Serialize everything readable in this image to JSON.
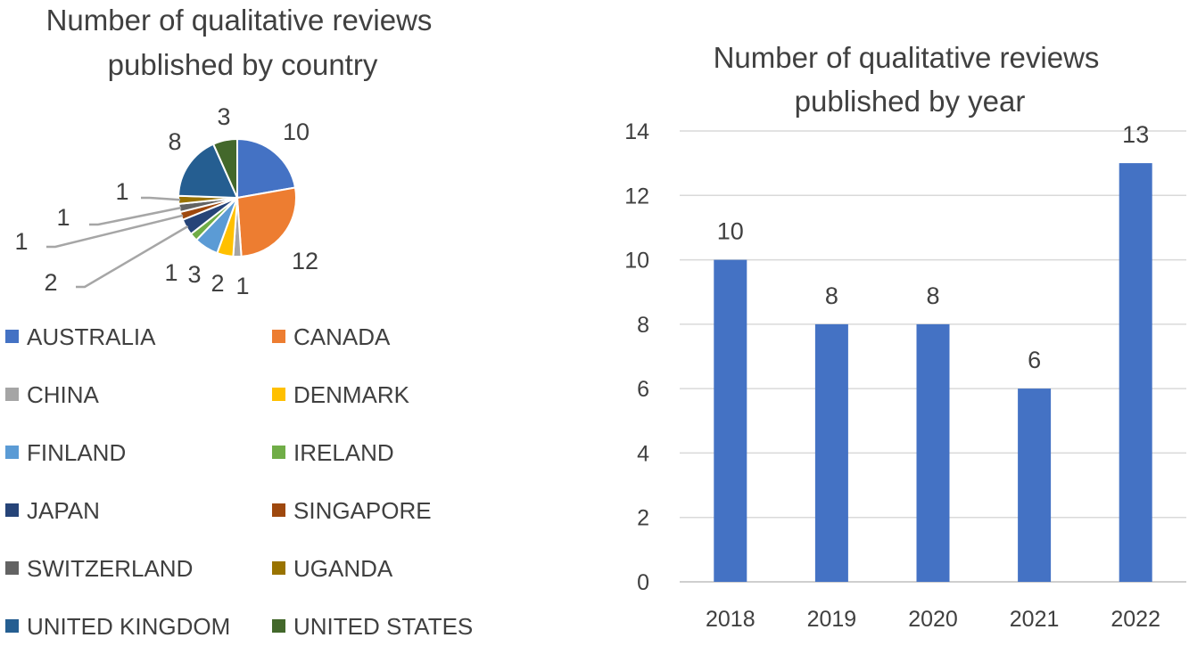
{
  "chart_data": [
    {
      "type": "pie",
      "title_lines": [
        "Number of qualitative reviews",
        "published by country"
      ],
      "legend_position": "bottom",
      "slices": [
        {
          "label": "AUSTRALIA",
          "value": 10,
          "color": "#4472C4"
        },
        {
          "label": "CANADA",
          "value": 12,
          "color": "#ED7D31"
        },
        {
          "label": "CHINA",
          "value": 1,
          "color": "#A5A5A5"
        },
        {
          "label": "DENMARK",
          "value": 2,
          "color": "#FFC000"
        },
        {
          "label": "FINLAND",
          "value": 3,
          "color": "#5B9BD5"
        },
        {
          "label": "IRELAND",
          "value": 1,
          "color": "#70AD47"
        },
        {
          "label": "JAPAN",
          "value": 2,
          "color": "#264478"
        },
        {
          "label": "SINGAPORE",
          "value": 1,
          "color": "#9E480E"
        },
        {
          "label": "SWITZERLAND",
          "value": 1,
          "color": "#636363"
        },
        {
          "label": "UGANDA",
          "value": 1,
          "color": "#997300"
        },
        {
          "label": "UNITED KINGDOM",
          "value": 8,
          "color": "#255E91"
        },
        {
          "label": "UNITED STATES",
          "value": 3,
          "color": "#43682B"
        }
      ]
    },
    {
      "type": "bar",
      "title_lines": [
        "Number of qualitative reviews",
        "published by year"
      ],
      "categories": [
        "2018",
        "2019",
        "2020",
        "2021",
        "2022"
      ],
      "values": [
        10,
        8,
        8,
        6,
        13
      ],
      "ylim": [
        0,
        14
      ],
      "yticks": [
        0,
        2,
        4,
        6,
        8,
        10,
        12,
        14
      ],
      "bar_color": "#4472C4",
      "grid": true,
      "xlabel": "",
      "ylabel": ""
    }
  ]
}
